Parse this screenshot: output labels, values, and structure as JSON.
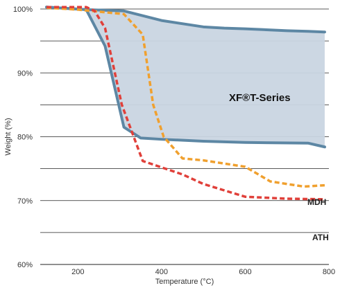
{
  "chart_data": {
    "type": "line",
    "title": "",
    "xlabel": "Temperature (°C)",
    "ylabel": "Weight (%)",
    "xlim": [
      110,
      800
    ],
    "ylim": [
      60,
      100
    ],
    "x_ticks": [
      200,
      400,
      600,
      800
    ],
    "y_ticks": [
      {
        "value": 100,
        "label": "100%"
      },
      {
        "value": 90,
        "label": "90%"
      },
      {
        "value": 80,
        "label": "80%"
      },
      {
        "value": 70,
        "label": "70%"
      },
      {
        "value": 60,
        "label": "60%"
      }
    ],
    "gridlines_y": [
      65,
      70,
      75,
      80,
      85,
      90,
      95,
      100
    ],
    "grid": "horizontal",
    "band": {
      "name": "XF®T-Series",
      "color": "#c9d5e1",
      "edge_color": "#5d87a4",
      "upper": [
        [
          125,
          100.3
        ],
        [
          220,
          99.9
        ],
        [
          310,
          99.7
        ],
        [
          400,
          98.2
        ],
        [
          500,
          97.2
        ],
        [
          550,
          97.0
        ],
        [
          600,
          96.9
        ],
        [
          700,
          96.6
        ],
        [
          750,
          96.5
        ],
        [
          790,
          96.4
        ]
      ],
      "lower": [
        [
          125,
          100.3
        ],
        [
          220,
          99.9
        ],
        [
          265,
          94.2
        ],
        [
          310,
          81.5
        ],
        [
          350,
          79.8
        ],
        [
          400,
          79.6
        ],
        [
          500,
          79.3
        ],
        [
          600,
          79.1
        ],
        [
          750,
          79.0
        ],
        [
          790,
          78.4
        ]
      ]
    },
    "series": [
      {
        "name": "MDH",
        "color": "#f0a02e",
        "x": [
          125,
          200,
          310,
          355,
          380,
          405,
          450,
          500,
          600,
          660,
          740,
          790
        ],
        "y": [
          100.2,
          99.9,
          99.2,
          96.0,
          85.0,
          80.0,
          76.6,
          76.3,
          75.3,
          73.0,
          72.2,
          72.4
        ]
      },
      {
        "name": "ATH",
        "color": "#e0403a",
        "x": [
          125,
          220,
          240,
          265,
          305,
          355,
          400,
          450,
          500,
          550,
          600,
          700,
          790
        ],
        "y": [
          100.3,
          100.3,
          99.7,
          97.0,
          85.0,
          76.2,
          75.2,
          74.1,
          72.6,
          71.6,
          70.6,
          70.3,
          70.2
        ]
      }
    ]
  }
}
